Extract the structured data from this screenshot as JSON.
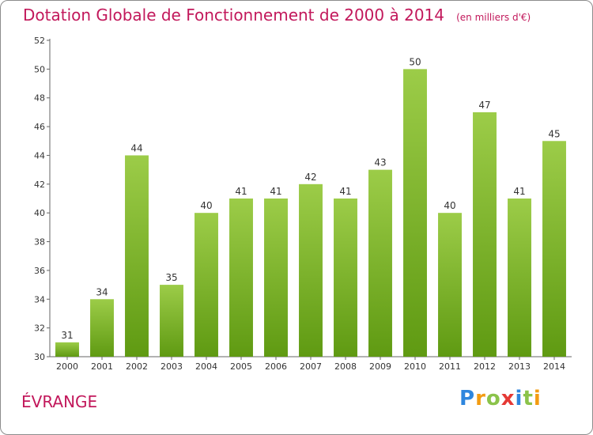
{
  "header": {
    "title": "Dotation Globale de Fonctionnement de 2000 à 2014",
    "unit": "(en milliers d'€)"
  },
  "footer": {
    "commune": "ÉVRANGE",
    "logo": {
      "text": "Proxiti",
      "letters": [
        {
          "char": "P",
          "color": "#2e86de"
        },
        {
          "char": "r",
          "color": "#f39c12"
        },
        {
          "char": "o",
          "color": "#8bc34a"
        },
        {
          "char": "x",
          "color": "#e53935"
        },
        {
          "char": "i",
          "color": "#2e86de"
        },
        {
          "char": "t",
          "color": "#8bc34a"
        },
        {
          "char": "i",
          "color": "#f39c12"
        }
      ]
    }
  },
  "chart_data": {
    "type": "bar",
    "title": "Dotation Globale de Fonctionnement de 2000 à 2014",
    "subtitle": "(en milliers d'€)",
    "categories": [
      "2000",
      "2001",
      "2002",
      "2003",
      "2004",
      "2005",
      "2006",
      "2007",
      "2008",
      "2009",
      "2010",
      "2011",
      "2012",
      "2013",
      "2014"
    ],
    "values": [
      31,
      34,
      44,
      35,
      40,
      41,
      41,
      42,
      41,
      43,
      50,
      40,
      47,
      41,
      45
    ],
    "ylim": [
      30,
      52
    ],
    "yticks": [
      30,
      32,
      34,
      36,
      38,
      40,
      42,
      44,
      46,
      48,
      50,
      52
    ],
    "grid": false,
    "legend": "none",
    "colors": {
      "bar_light": "#9ccc48",
      "bar_dark": "#5f9a12",
      "axis": "#666666",
      "title": "#c2185b"
    }
  }
}
